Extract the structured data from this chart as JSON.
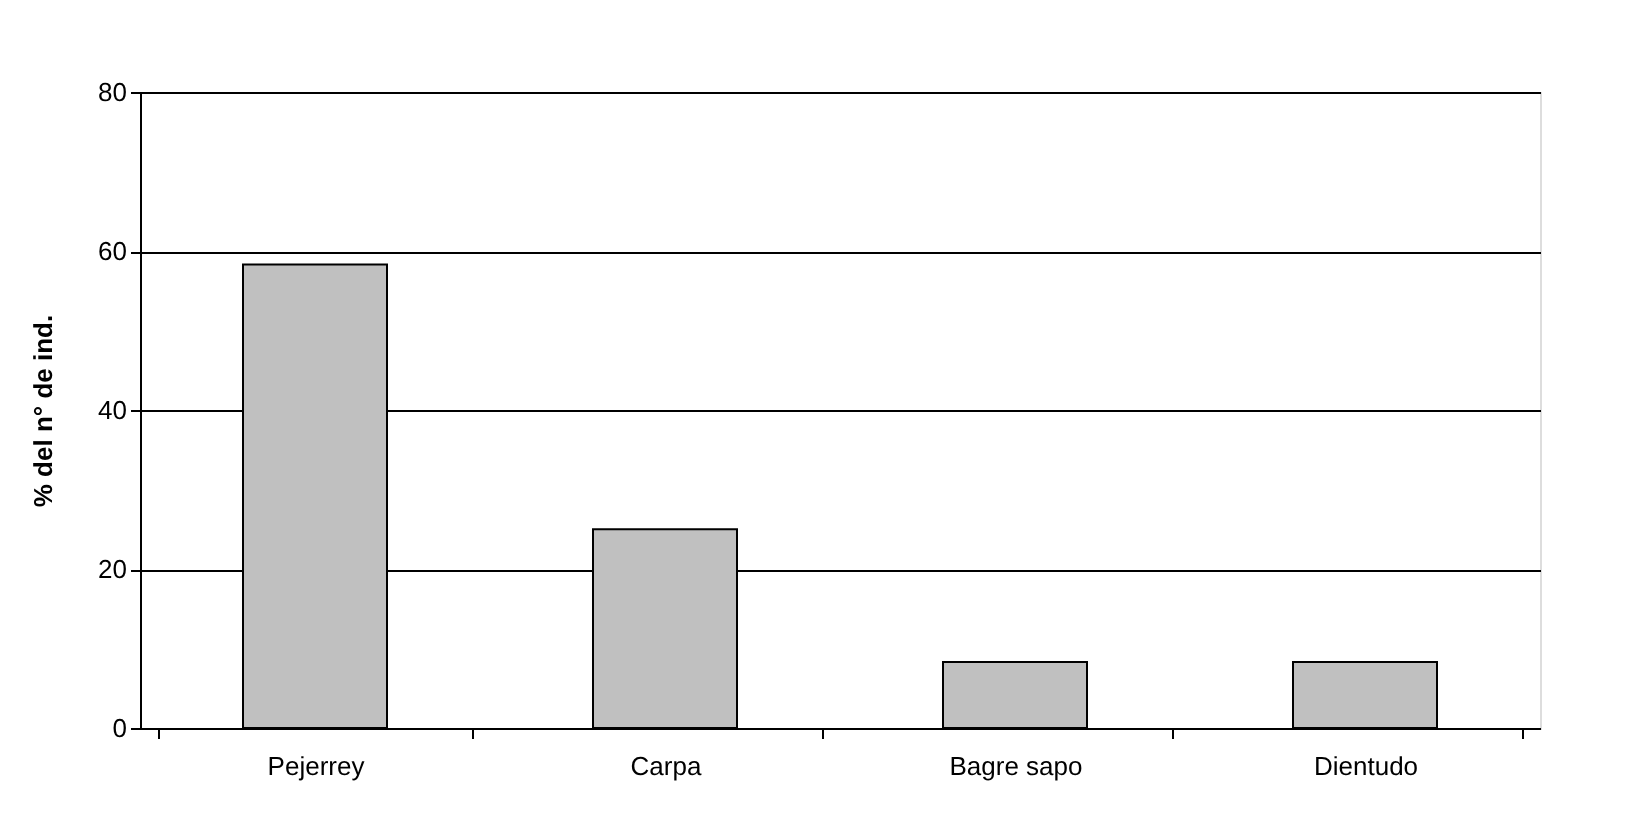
{
  "chart_data": {
    "type": "bar",
    "ylabel": "% del n° de ind.",
    "categories": [
      "Pejerrey",
      "Carpa",
      "Bagre sapo",
      "Dientudo"
    ],
    "values": [
      58.3,
      25,
      8.3,
      8.3
    ],
    "color": "#c0c0c0",
    "ylim": [
      0,
      80
    ],
    "yticks": [
      0,
      20,
      40,
      60,
      80
    ],
    "grid": "y"
  }
}
